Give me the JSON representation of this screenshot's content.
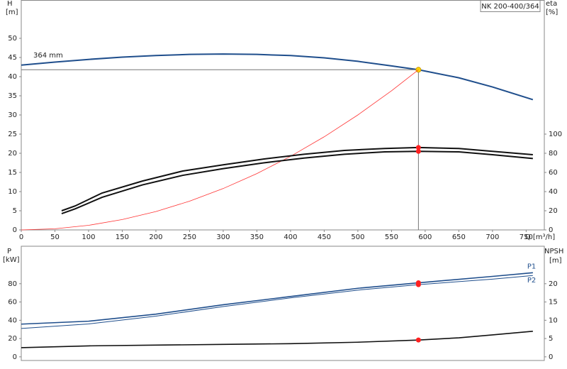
{
  "chart_data": [
    {
      "type": "line",
      "title": "NK 200-400/364",
      "ylabel": "H",
      "yunit": "[m]",
      "y2label": "eta",
      "y2unit": "[%]",
      "xlabel": "Q [m³/h]",
      "annotation": "364 mm",
      "xlim": [
        0,
        777
      ],
      "xticks": [
        0,
        50,
        100,
        150,
        200,
        250,
        300,
        350,
        400,
        450,
        500,
        550,
        600,
        650,
        700,
        750
      ],
      "ylim": [
        0,
        60
      ],
      "yticks": [
        0,
        5,
        10,
        15,
        20,
        25,
        30,
        35,
        40,
        45,
        50
      ],
      "y2lim": [
        0,
        240
      ],
      "y2ticks": [
        0,
        20,
        40,
        60,
        80,
        100
      ],
      "operating_q": 590,
      "guide_color": "#777777",
      "series": [
        {
          "color": "#1f4e8c",
          "width": 2,
          "marker_color": "#ffd700",
          "guides": true,
          "x": [
            0,
            50,
            100,
            150,
            200,
            250,
            300,
            350,
            400,
            450,
            500,
            550,
            590,
            650,
            700,
            760
          ],
          "values": [
            43,
            43.8,
            44.5,
            45.1,
            45.5,
            45.8,
            45.9,
            45.8,
            45.5,
            44.9,
            44.0,
            42.8,
            41.8,
            39.7,
            37.3,
            34.0
          ]
        },
        {
          "color": "#ff3333",
          "width": 0.8,
          "x": [
            0,
            50,
            100,
            150,
            200,
            250,
            300,
            350,
            400,
            450,
            500,
            550,
            590
          ],
          "values": [
            0,
            0.3,
            1.2,
            2.7,
            4.8,
            7.5,
            10.8,
            14.7,
            19.2,
            24.3,
            30.0,
            36.3,
            41.8
          ]
        },
        {
          "color": "#111111",
          "width": 2,
          "axis": "y2",
          "marker_color": "#ff2020",
          "x": [
            60,
            80,
            120,
            180,
            240,
            300,
            360,
            420,
            480,
            540,
            590,
            650,
            700,
            760
          ],
          "values": [
            20,
            25,
            38.5,
            51,
            61.5,
            68,
            74,
            79,
            83,
            85,
            86,
            85,
            82,
            78.5
          ]
        },
        {
          "color": "#111111",
          "width": 2,
          "axis": "y2",
          "marker_color": "#ff2020",
          "x": [
            60,
            80,
            120,
            180,
            240,
            300,
            360,
            420,
            480,
            540,
            590,
            650,
            700,
            760
          ],
          "values": [
            17,
            22,
            34,
            47,
            57,
            64,
            70,
            75,
            79,
            81.5,
            82,
            81.5,
            78.5,
            74.5
          ]
        }
      ]
    },
    {
      "type": "line",
      "ylabel": "P",
      "yunit": "[kW]",
      "y2label": "NPSH",
      "y2unit": "[m]",
      "xlim": [
        0,
        777
      ],
      "ylim": [
        -4,
        121
      ],
      "yticks": [
        0,
        20,
        40,
        60,
        80
      ],
      "y2lim": [
        -1,
        30.25
      ],
      "y2ticks": [
        0,
        5,
        10,
        15,
        20
      ],
      "operating_q": 590,
      "series": [
        {
          "name": "P1",
          "color": "#1f4e8c",
          "width": 1.6,
          "marker_color": "#ff2020",
          "x": [
            0,
            100,
            200,
            300,
            400,
            500,
            590,
            700,
            760
          ],
          "values": [
            35.8,
            39,
            46.7,
            57,
            66,
            75,
            81,
            88,
            92
          ]
        },
        {
          "name": "P2",
          "color": "#1f4e8c",
          "width": 1,
          "marker_color": "#ff2020",
          "x": [
            0,
            100,
            200,
            300,
            400,
            500,
            590,
            700,
            760
          ],
          "values": [
            31,
            36,
            44.5,
            55,
            64.5,
            73,
            79,
            85,
            89
          ]
        },
        {
          "color": "#111111",
          "width": 1.6,
          "axis": "y2",
          "marker_color": "#ff2020",
          "x": [
            0,
            100,
            200,
            300,
            400,
            500,
            590,
            650,
            700,
            760
          ],
          "values": [
            2.5,
            3.0,
            3.2,
            3.4,
            3.6,
            4.0,
            4.6,
            5.2,
            6.0,
            7.0
          ]
        }
      ]
    }
  ]
}
